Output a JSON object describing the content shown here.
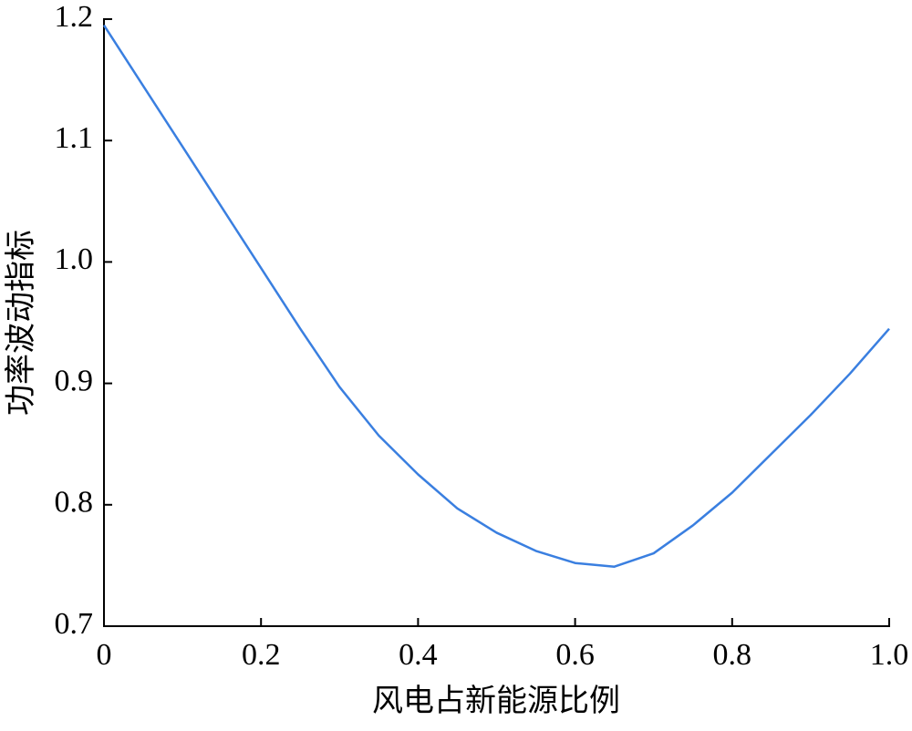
{
  "chart_data": {
    "type": "line",
    "xlabel": "风电占新能源比例",
    "ylabel": "功率波动指标",
    "x": [
      0,
      0.05,
      0.1,
      0.15,
      0.2,
      0.25,
      0.3,
      0.35,
      0.4,
      0.45,
      0.5,
      0.55,
      0.6,
      0.65,
      0.7,
      0.75,
      0.8,
      0.85,
      0.9,
      0.95,
      1
    ],
    "series": [
      {
        "color": "#3a7fe0",
        "values": [
          1.195,
          1.145,
          1.095,
          1.045,
          0.995,
          0.945,
          0.897,
          0.857,
          0.825,
          0.797,
          0.777,
          0.762,
          0.752,
          0.749,
          0.76,
          0.783,
          0.81,
          0.842,
          0.874,
          0.908,
          0.945
        ]
      }
    ],
    "xlim": [
      0,
      1
    ],
    "xticks": [
      0,
      0.2,
      0.4,
      0.6,
      0.8,
      {
        "value": 1,
        "label": "1.0"
      }
    ],
    "ylim": [
      0.7,
      1.2
    ],
    "yticks": [
      {
        "value": 0.7,
        "label": "0.7"
      },
      {
        "value": 0.8,
        "label": "0.8"
      },
      {
        "value": 0.9,
        "label": "0.9"
      },
      {
        "value": 1,
        "label": "1.0"
      },
      {
        "value": 1.1,
        "label": "1.1"
      },
      {
        "value": 1.2,
        "label": "1.2"
      }
    ]
  }
}
